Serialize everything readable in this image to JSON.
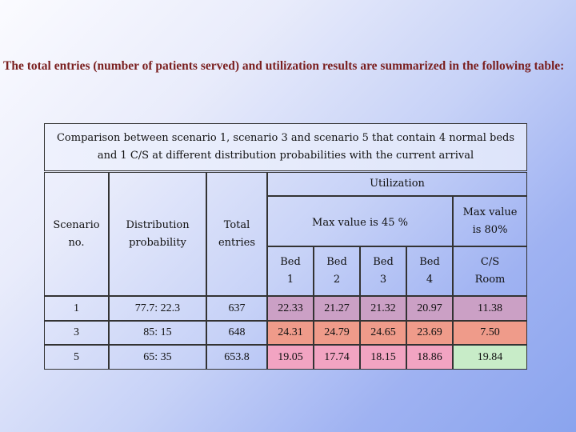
{
  "intro": "The total entries (number of patients served) and utilization results are summarized in the following table:",
  "caption": {
    "line1": "Comparison between scenario 1, scenario 3 and scenario 5 that contain 4 normal beds",
    "line2": "and 1 C/S at different distribution probabilities with the current arrival"
  },
  "headers": {
    "utilization": "Utilization",
    "scenario": "Scenario no.",
    "distribution": "Distribution probability",
    "total": "Total entries",
    "max45": "Max value is  45  %",
    "max80": "Max value is 80%",
    "bed1": "Bed 1",
    "bed2": "Bed 2",
    "bed3": "Bed 3",
    "bed4": "Bed 4",
    "cs": "C/S Room"
  },
  "rows": [
    {
      "scenario": "1",
      "distribution": "77.7: 22.3",
      "total": "637",
      "bed1": "22.33",
      "bed2": "21.27",
      "bed3": "21.32",
      "bed4": "20.97",
      "cs": "11.38",
      "color": "#cba0c5"
    },
    {
      "scenario": "3",
      "distribution": "85: 15",
      "total": "648",
      "bed1": "24.31",
      "bed2": "24.79",
      "bed3": "24.65",
      "bed4": "23.69",
      "cs": "7.50",
      "color": "#ef9b8a"
    },
    {
      "scenario": "5",
      "distribution": "65: 35",
      "total": "653.8",
      "bed1": "19.05",
      "bed2": "17.74",
      "bed3": "18.15",
      "bed4": "18.86",
      "cs": "19.84",
      "color": "#c8ecc8"
    }
  ]
}
